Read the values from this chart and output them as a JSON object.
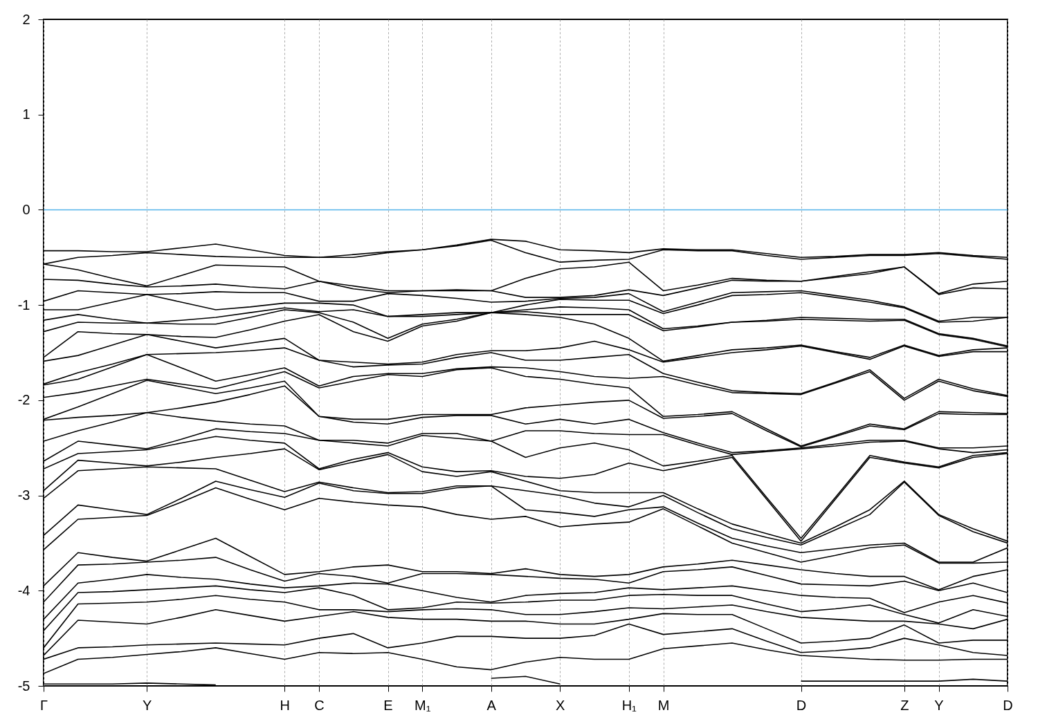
{
  "chart_data": {
    "type": "line",
    "categories": [
      "Γ",
      null,
      null,
      "Y",
      null,
      null,
      null,
      "H",
      "C",
      null,
      "E",
      "M₁",
      null,
      "A",
      null,
      "X",
      null,
      "H₁",
      "M",
      null,
      null,
      null,
      "D",
      null,
      null,
      "Z",
      "Y",
      null,
      "D"
    ],
    "ylim": [
      -5,
      2
    ],
    "yticks": [
      -5,
      -4,
      -3,
      -2,
      -1,
      0,
      1,
      2
    ],
    "grid": "x",
    "ref_lines": [
      {
        "axis": "y",
        "value": 0,
        "color": "#56b4e9"
      }
    ],
    "series": [
      {
        "color": "#000000",
        "values": [
          -0.43,
          -0.43,
          -0.44,
          -0.44,
          -0.4,
          -0.36,
          -0.42,
          -0.48,
          -0.5,
          -0.47,
          -0.44,
          -0.42,
          -0.37,
          -0.31,
          -0.33,
          -0.42,
          -0.43,
          -0.45,
          -0.41,
          -0.42,
          -0.42,
          -0.46,
          -0.5,
          -0.49,
          -0.47,
          -0.47,
          -0.45,
          -0.48,
          -0.5
        ]
      },
      {
        "color": "#000000",
        "values": [
          -0.57,
          -0.5,
          -0.48,
          -0.45,
          -0.47,
          -0.49,
          -0.5,
          -0.5,
          -0.5,
          -0.5,
          -0.45,
          -0.42,
          -0.38,
          -0.32,
          -0.45,
          -0.55,
          -0.53,
          -0.52,
          -0.42,
          -0.43,
          -0.43,
          -0.48,
          -0.52,
          -0.5,
          -0.48,
          -0.48,
          -0.46,
          -0.49,
          -0.52
        ]
      },
      {
        "color": "#000000",
        "values": [
          -0.57,
          -0.63,
          -0.72,
          -0.8,
          -0.69,
          -0.58,
          -0.59,
          -0.6,
          -0.75,
          -0.8,
          -0.85,
          -0.85,
          -0.84,
          -0.85,
          -0.72,
          -0.62,
          -0.6,
          -0.55,
          -0.85,
          -0.79,
          -0.72,
          -0.74,
          -0.75,
          -0.7,
          -0.65,
          -0.6,
          -0.88,
          -0.78,
          -0.75
        ]
      },
      {
        "color": "#000000",
        "values": [
          -0.73,
          -0.74,
          -0.78,
          -0.81,
          -0.8,
          -0.78,
          -0.81,
          -0.83,
          -0.75,
          -0.83,
          -0.87,
          -0.85,
          -0.85,
          -0.85,
          -0.92,
          -0.92,
          -0.9,
          -0.84,
          -0.9,
          -0.82,
          -0.74,
          -0.75,
          -0.75,
          -0.71,
          -0.67,
          -0.6,
          -0.89,
          -0.82,
          -0.83
        ]
      },
      {
        "color": "#000000",
        "values": [
          -0.96,
          -0.85,
          -0.87,
          -0.89,
          -0.88,
          -0.86,
          -0.87,
          -0.87,
          -0.96,
          -0.96,
          -0.88,
          -0.9,
          -0.93,
          -0.97,
          -0.96,
          -0.93,
          -0.92,
          -0.88,
          -1.07,
          -0.97,
          -0.87,
          -0.86,
          -0.85,
          -0.9,
          -0.95,
          -1.02,
          -1.17,
          -1.13,
          -1.13
        ]
      },
      {
        "color": "#000000",
        "values": [
          -1.05,
          -1.05,
          -0.97,
          -0.89,
          -0.97,
          -1.05,
          -1.02,
          -0.98,
          -0.98,
          -1,
          -1.12,
          -1.1,
          -1.08,
          -1.08,
          -1,
          -0.94,
          -0.95,
          -0.95,
          -1.09,
          -1,
          -0.9,
          -0.89,
          -0.87,
          -0.92,
          -0.97,
          -1.03,
          -1.18,
          -1.17,
          -1.13
        ]
      },
      {
        "color": "#000000",
        "values": [
          -1.16,
          -1.1,
          -1.15,
          -1.19,
          -1.16,
          -1.13,
          -1.08,
          -1.03,
          -1.07,
          -1.05,
          -1.12,
          -1.12,
          -1.1,
          -1.08,
          -1.05,
          -1.02,
          -1.03,
          -1.05,
          -1.25,
          -1.22,
          -1.18,
          -1.16,
          -1.13,
          -1.14,
          -1.15,
          -1.15,
          -1.3,
          -1.35,
          -1.43
        ]
      },
      {
        "color": "#000000",
        "values": [
          -1.28,
          -1.18,
          -1.19,
          -1.19,
          -1.2,
          -1.2,
          -1.13,
          -1.05,
          -1.08,
          -1.18,
          -1.35,
          -1.2,
          -1.15,
          -1.08,
          -1.07,
          -1.1,
          -1.1,
          -1.1,
          -1.27,
          -1.23,
          -1.18,
          -1.17,
          -1.15,
          -1.16,
          -1.17,
          -1.16,
          -1.31,
          -1.36,
          -1.44
        ]
      },
      {
        "color": "#000000",
        "values": [
          -1.55,
          -1.28,
          -1.3,
          -1.31,
          -1.33,
          -1.34,
          -1.26,
          -1.17,
          -1.1,
          -1.28,
          -1.38,
          -1.22,
          -1.17,
          -1.08,
          -1.1,
          -1.13,
          -1.2,
          -1.35,
          -1.59,
          -1.53,
          -1.47,
          -1.45,
          -1.42,
          -1.49,
          -1.55,
          -1.42,
          -1.53,
          -1.47,
          -1.45
        ]
      },
      {
        "color": "#000000",
        "values": [
          -1.59,
          -1.53,
          -1.42,
          -1.31,
          -1.38,
          -1.45,
          -1.4,
          -1.35,
          -1.58,
          -1.6,
          -1.62,
          -1.6,
          -1.52,
          -1.48,
          -1.48,
          -1.45,
          -1.38,
          -1.47,
          -1.6,
          -1.55,
          -1.5,
          -1.47,
          -1.43,
          -1.5,
          -1.57,
          -1.43,
          -1.54,
          -1.49,
          -1.49
        ]
      },
      {
        "color": "#000000",
        "values": [
          -1.83,
          -1.71,
          -1.62,
          -1.52,
          -1.51,
          -1.5,
          -1.48,
          -1.45,
          -1.58,
          -1.65,
          -1.63,
          -1.62,
          -1.55,
          -1.5,
          -1.58,
          -1.58,
          -1.55,
          -1.52,
          -1.72,
          -1.81,
          -1.9,
          -1.92,
          -1.93,
          -1.81,
          -1.68,
          -1.98,
          -1.78,
          -1.88,
          -1.95
        ]
      },
      {
        "color": "#000000",
        "values": [
          -1.84,
          -1.78,
          -1.65,
          -1.52,
          -1.66,
          -1.8,
          -1.73,
          -1.66,
          -1.85,
          -1.75,
          -1.72,
          -1.72,
          -1.67,
          -1.65,
          -1.66,
          -1.7,
          -1.75,
          -1.77,
          -1.75,
          -1.84,
          -1.92,
          -1.93,
          -1.94,
          -1.82,
          -1.7,
          -2,
          -1.8,
          -1.9,
          -1.96
        ]
      },
      {
        "color": "#000000",
        "values": [
          -1.97,
          -1.92,
          -1.85,
          -1.78,
          -1.83,
          -1.88,
          -1.79,
          -1.7,
          -1.87,
          -1.8,
          -1.73,
          -1.75,
          -1.68,
          -1.66,
          -1.75,
          -1.78,
          -1.83,
          -1.87,
          -2.17,
          -2.15,
          -2.12,
          -2.3,
          -2.48,
          -2.37,
          -2.25,
          -2.3,
          -2.12,
          -2.13,
          -2.14
        ]
      },
      {
        "color": "#000000",
        "values": [
          -2.2,
          -2.07,
          -1.93,
          -1.79,
          -1.86,
          -1.93,
          -1.87,
          -1.8,
          -2.17,
          -2.2,
          -2.2,
          -2.15,
          -2.15,
          -2.15,
          -2.08,
          -2.05,
          -2.02,
          -2,
          -2.19,
          -2.17,
          -2.14,
          -2.32,
          -2.49,
          -2.38,
          -2.27,
          -2.31,
          -2.14,
          -2.15,
          -2.15
        ]
      },
      {
        "color": "#000000",
        "values": [
          -2.21,
          -2.18,
          -2.16,
          -2.13,
          -2.08,
          -2.02,
          -1.94,
          -1.85,
          -2.17,
          -2.23,
          -2.25,
          -2.18,
          -2.16,
          -2.16,
          -2.25,
          -2.2,
          -2.25,
          -2.2,
          -2.34,
          -2.45,
          -2.55,
          -2.53,
          -2.5,
          -2.46,
          -2.42,
          -2.42,
          -2.5,
          -2.5,
          -2.48
        ]
      },
      {
        "color": "#000000",
        "values": [
          -2.43,
          -2.32,
          -2.23,
          -2.13,
          -2.18,
          -2.22,
          -2.25,
          -2.27,
          -2.42,
          -2.42,
          -2.45,
          -2.35,
          -2.35,
          -2.43,
          -2.32,
          -2.32,
          -2.35,
          -2.36,
          -2.36,
          -2.47,
          -2.57,
          -2.54,
          -2.51,
          -2.48,
          -2.44,
          -2.43,
          -2.51,
          -2.55,
          -2.52
        ]
      },
      {
        "color": "#000000",
        "values": [
          -2.64,
          -2.43,
          -2.47,
          -2.51,
          -2.41,
          -2.3,
          -2.33,
          -2.35,
          -2.42,
          -2.45,
          -2.48,
          -2.37,
          -2.4,
          -2.43,
          -2.6,
          -2.5,
          -2.45,
          -2.52,
          -2.69,
          -2.64,
          -2.58,
          -3.02,
          -3.45,
          -3.02,
          -2.58,
          -2.65,
          -2.7,
          -2.58,
          -2.55
        ]
      },
      {
        "color": "#000000",
        "values": [
          -2.72,
          -2.56,
          -2.54,
          -2.52,
          -2.45,
          -2.38,
          -2.42,
          -2.45,
          -2.72,
          -2.62,
          -2.55,
          -2.7,
          -2.75,
          -2.74,
          -2.8,
          -2.82,
          -2.78,
          -2.66,
          -2.74,
          -2.67,
          -2.6,
          -3.04,
          -3.48,
          -3.04,
          -2.6,
          -2.66,
          -2.71,
          -2.6,
          -2.56
        ]
      },
      {
        "color": "#000000",
        "values": [
          -2.95,
          -2.63,
          -2.66,
          -2.69,
          -2.65,
          -2.6,
          -2.56,
          -2.51,
          -2.73,
          -2.65,
          -2.57,
          -2.75,
          -2.8,
          -2.75,
          -2.85,
          -2.95,
          -2.97,
          -2.97,
          -2.97,
          -3.14,
          -3.3,
          -3.4,
          -3.5,
          -3.33,
          -3.15,
          -2.85,
          -3.2,
          -3.35,
          -3.48
        ]
      },
      {
        "color": "#000000",
        "values": [
          -3.03,
          -2.74,
          -2.72,
          -2.7,
          -2.71,
          -2.72,
          -2.84,
          -2.96,
          -2.86,
          -2.92,
          -2.97,
          -2.96,
          -2.9,
          -2.9,
          -2.95,
          -3,
          -3.08,
          -3.12,
          -3,
          -3.18,
          -3.35,
          -3.44,
          -3.52,
          -3.36,
          -3.2,
          -2.86,
          -3.21,
          -3.38,
          -3.5
        ]
      },
      {
        "color": "#000000",
        "values": [
          -3.42,
          -3.1,
          -3.15,
          -3.2,
          -3.03,
          -2.85,
          -2.94,
          -3.02,
          -2.87,
          -2.95,
          -2.98,
          -2.98,
          -2.92,
          -2.9,
          -3.15,
          -3.18,
          -3.22,
          -3.15,
          -3.12,
          -3.29,
          -3.45,
          -3.53,
          -3.6,
          -3.56,
          -3.52,
          -3.5,
          -3.7,
          -3.7,
          -3.55
        ]
      },
      {
        "color": "#000000",
        "values": [
          -3.57,
          -3.25,
          -3.23,
          -3.21,
          -3.07,
          -2.92,
          -3.04,
          -3.15,
          -3.03,
          -3.07,
          -3.1,
          -3.12,
          -3.2,
          -3.25,
          -3.22,
          -3.33,
          -3.3,
          -3.28,
          -3.14,
          -3.32,
          -3.5,
          -3.6,
          -3.7,
          -3.63,
          -3.55,
          -3.52,
          -3.71,
          -3.71,
          -3.7
        ]
      },
      {
        "color": "#000000",
        "values": [
          -3.95,
          -3.6,
          -3.65,
          -3.69,
          -3.57,
          -3.45,
          -3.64,
          -3.83,
          -3.8,
          -3.75,
          -3.73,
          -3.8,
          -3.8,
          -3.82,
          -3.77,
          -3.83,
          -3.85,
          -3.83,
          -3.75,
          -3.72,
          -3.68,
          -3.73,
          -3.78,
          -3.82,
          -3.85,
          -3.85,
          -3.99,
          -3.85,
          -3.78
        ]
      },
      {
        "color": "#000000",
        "values": [
          -4.12,
          -3.73,
          -3.72,
          -3.7,
          -3.68,
          -3.65,
          -3.78,
          -3.9,
          -3.82,
          -3.85,
          -3.92,
          -3.82,
          -3.82,
          -3.83,
          -3.85,
          -3.87,
          -3.88,
          -3.92,
          -3.8,
          -3.78,
          -3.75,
          -3.84,
          -3.93,
          -3.94,
          -3.95,
          -3.9,
          -4,
          -3.92,
          -4.02
        ]
      },
      {
        "color": "#000000",
        "values": [
          -4.3,
          -3.92,
          -3.88,
          -3.83,
          -3.86,
          -3.88,
          -3.93,
          -3.97,
          -3.95,
          -3.92,
          -3.93,
          -4,
          -4.07,
          -4.12,
          -4.05,
          -4.03,
          -4.02,
          -3.97,
          -3.99,
          -3.97,
          -3.95,
          -4,
          -4.05,
          -4.07,
          -4.08,
          -4.23,
          -4.12,
          -4.05,
          -4.13
        ]
      },
      {
        "color": "#000000",
        "values": [
          -4.42,
          -4.02,
          -4.01,
          -3.99,
          -3.97,
          -3.95,
          -3.99,
          -4.02,
          -3.97,
          -4.05,
          -4.2,
          -4.18,
          -4.12,
          -4.13,
          -4.12,
          -4.1,
          -4.1,
          -4.05,
          -4.04,
          -4.05,
          -4.05,
          -4.14,
          -4.22,
          -4.19,
          -4.15,
          -4.25,
          -4.34,
          -4.2,
          -4.27
        ]
      },
      {
        "color": "#000000",
        "values": [
          -4.6,
          -4.14,
          -4.13,
          -4.12,
          -4.09,
          -4.05,
          -4.09,
          -4.12,
          -4.2,
          -4.2,
          -4.22,
          -4.2,
          -4.19,
          -4.2,
          -4.25,
          -4.25,
          -4.22,
          -4.18,
          -4.19,
          -4.17,
          -4.15,
          -4.22,
          -4.28,
          -4.3,
          -4.32,
          -4.32,
          -4.35,
          -4.4,
          -4.3
        ]
      },
      {
        "color": "#000000",
        "values": [
          -4.68,
          -4.31,
          -4.33,
          -4.35,
          -4.28,
          -4.2,
          -4.26,
          -4.32,
          -4.27,
          -4.22,
          -4.28,
          -4.3,
          -4.3,
          -4.32,
          -4.32,
          -4.35,
          -4.35,
          -4.3,
          -4.24,
          -4.25,
          -4.25,
          -4.4,
          -4.55,
          -4.53,
          -4.5,
          -4.36,
          -4.55,
          -4.52,
          -4.52
        ]
      },
      {
        "color": "#000000",
        "values": [
          -4.72,
          -4.6,
          -4.59,
          -4.57,
          -4.56,
          -4.55,
          -4.56,
          -4.57,
          -4.5,
          -4.45,
          -4.6,
          -4.55,
          -4.48,
          -4.48,
          -4.5,
          -4.5,
          -4.47,
          -4.35,
          -4.46,
          -4.43,
          -4.4,
          -4.53,
          -4.65,
          -4.63,
          -4.6,
          -4.5,
          -4.57,
          -4.65,
          -4.68
        ]
      },
      {
        "color": "#000000",
        "values": [
          -4.87,
          -4.72,
          -4.7,
          -4.67,
          -4.64,
          -4.6,
          -4.66,
          -4.72,
          -4.65,
          -4.66,
          -4.65,
          -4.72,
          -4.8,
          -4.83,
          -4.75,
          -4.7,
          -4.72,
          -4.72,
          -4.61,
          -4.58,
          -4.55,
          -4.62,
          -4.68,
          -4.7,
          -4.72,
          -4.73,
          -4.73,
          -4.72,
          -4.72
        ]
      },
      {
        "color": "#000000",
        "values": [
          -4.98,
          -4.98,
          -4.98,
          -4.97,
          -4.98,
          -4.99,
          null,
          null,
          null,
          null,
          null,
          null,
          null,
          -4.92,
          -4.9,
          -4.98,
          null,
          null,
          null,
          null,
          null,
          null,
          -4.95,
          -4.95,
          -4.95,
          -4.95,
          -4.95,
          -4.93,
          -4.95
        ]
      }
    ]
  }
}
